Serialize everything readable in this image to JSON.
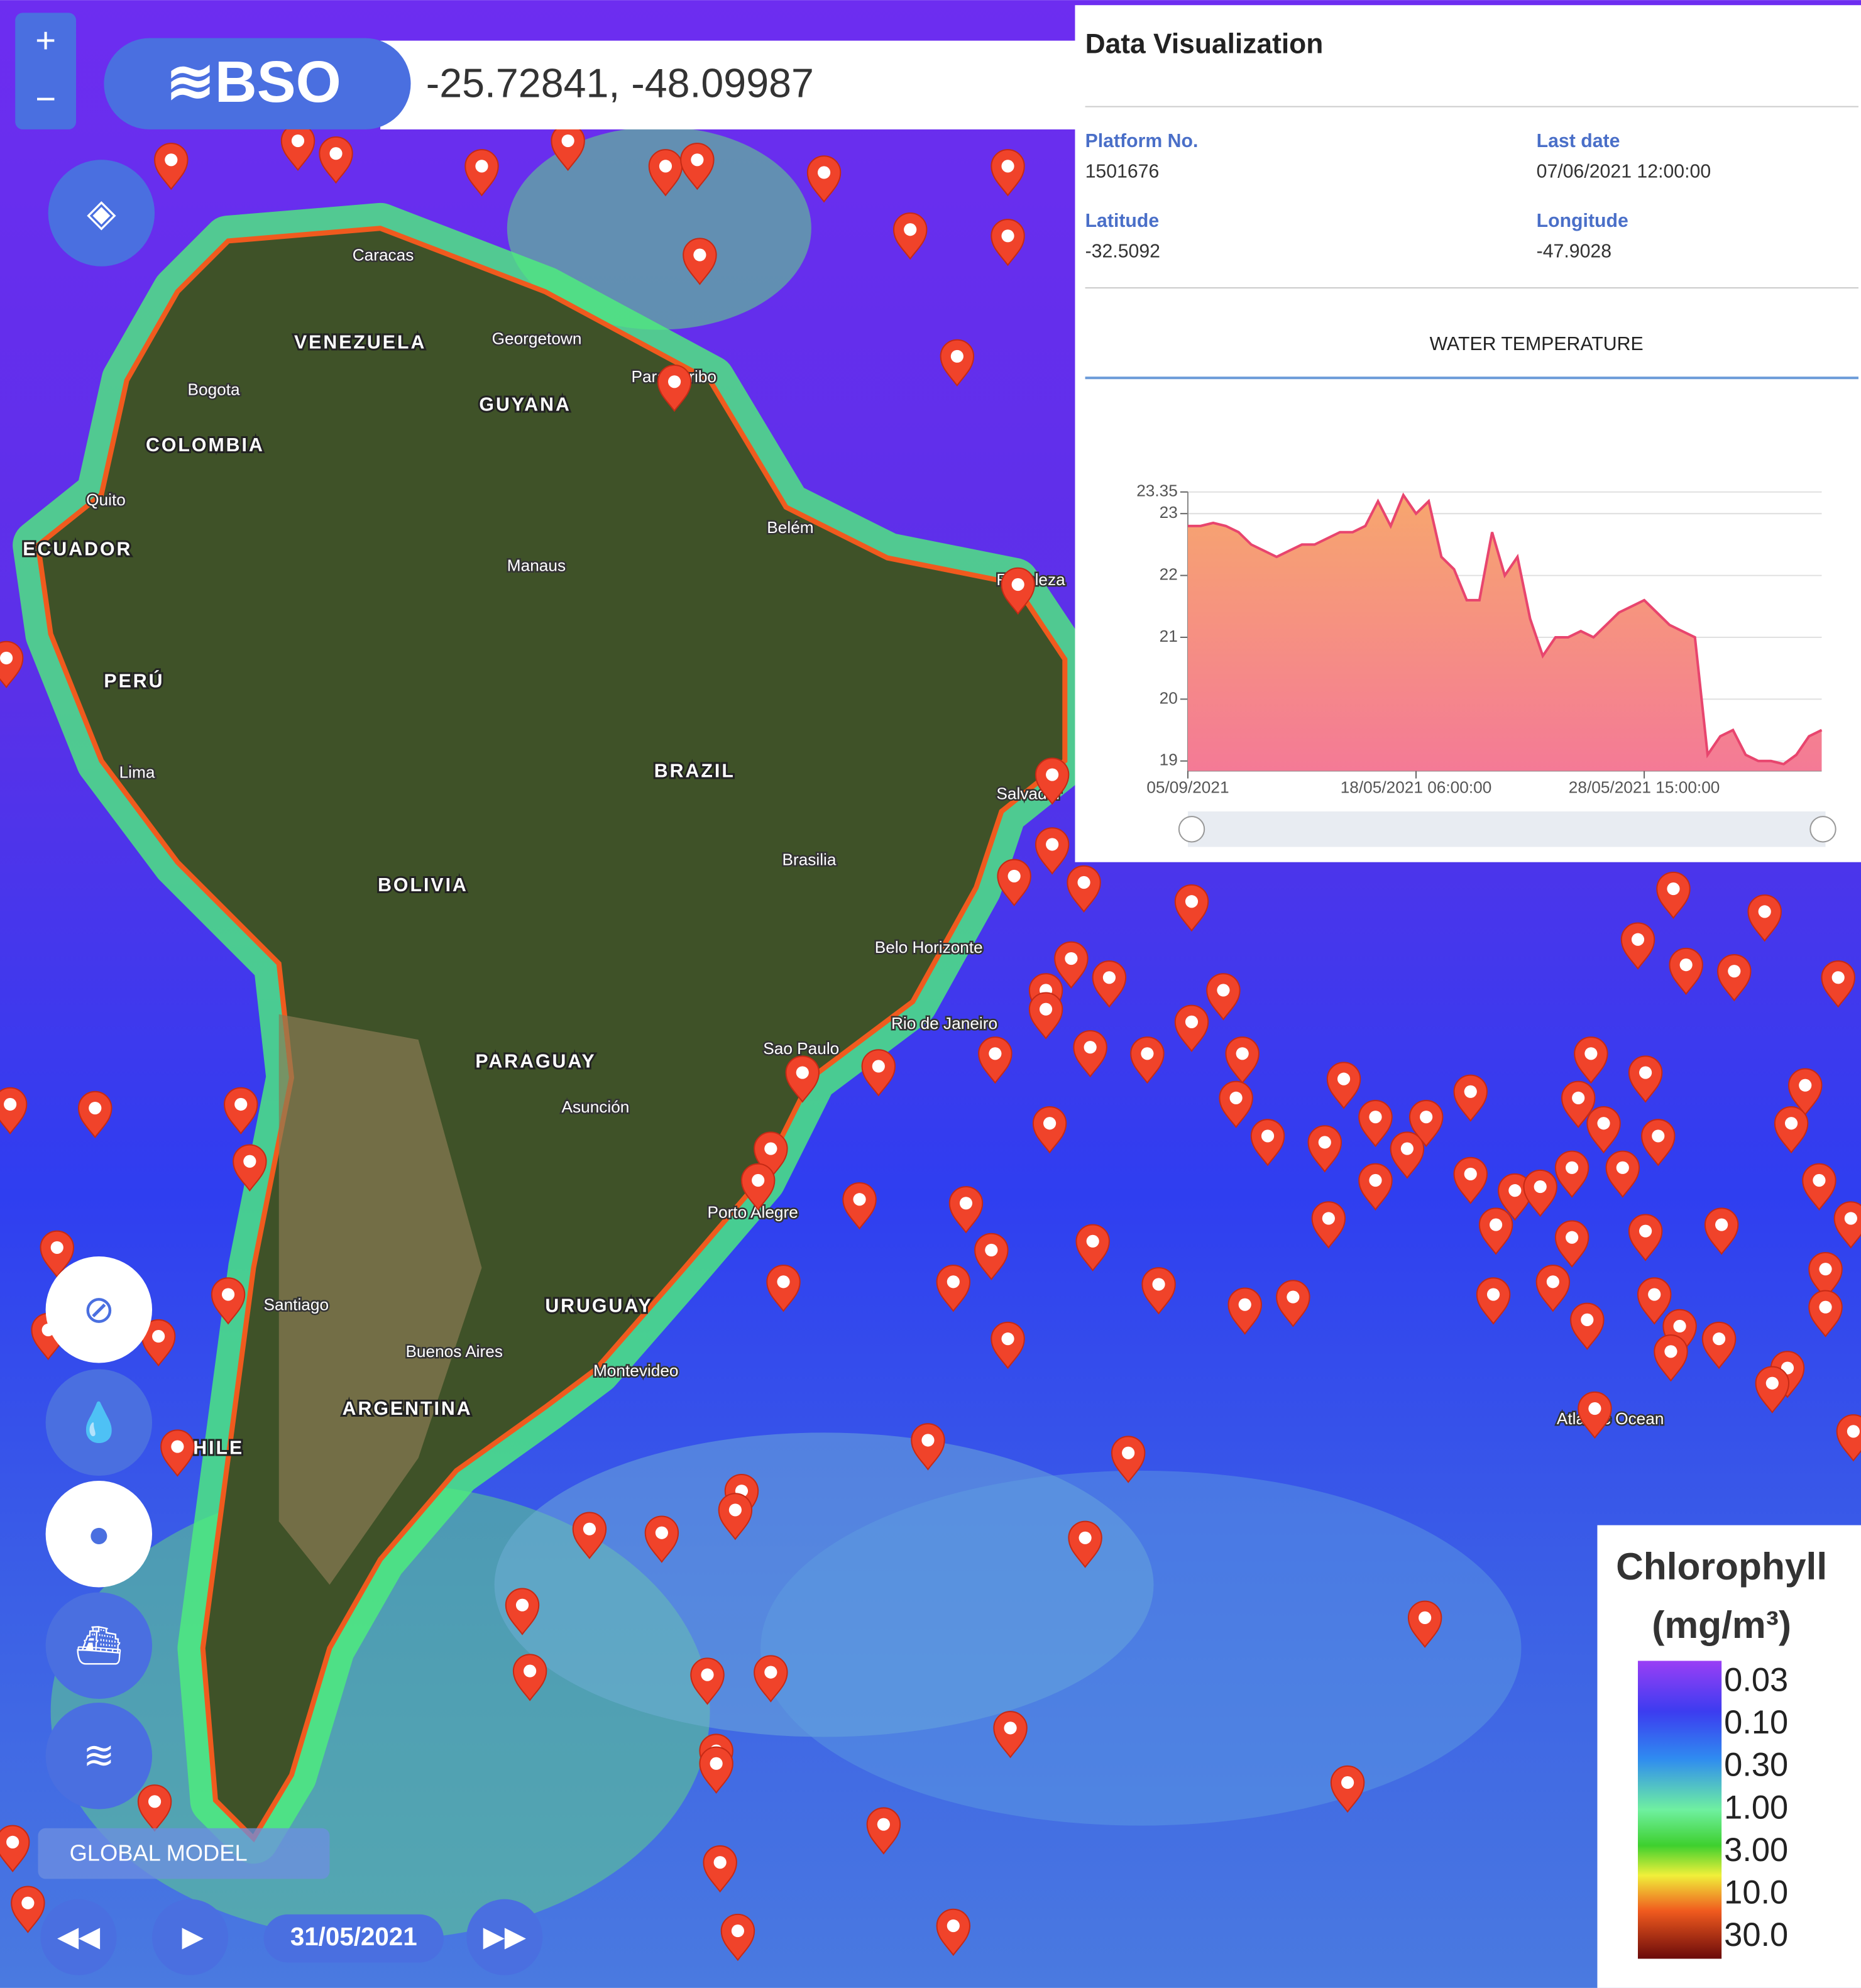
{
  "header": {
    "logo": "≋BSO",
    "coordinates": "-25.72841, -48.09987"
  },
  "map_labels": [
    "Caracas",
    "VENEZUELA",
    "Georgetown",
    "Paramaribo",
    "GUYANA",
    "Bogota",
    "COLOMBIA",
    "Quito",
    "ECUADOR",
    "Belém",
    "Manaus",
    "Fortaleza",
    "PERÚ",
    "Lima",
    "BRAZIL",
    "Salvador",
    "Brasilia",
    "BOLIVIA",
    "Belo Horizonte",
    "Rio de Janeiro",
    "Sao Paulo",
    "PARAGUAY",
    "Asunción",
    "Porto Alegre",
    "URUGUAY",
    "Santiago",
    "Buenos Aires",
    "Montevideo",
    "ARGENTINA",
    "CHILE",
    "Atlantic Ocean"
  ],
  "panel": {
    "title": "Data Visualization",
    "fields": [
      {
        "label": "Platform No.",
        "value": "1501676"
      },
      {
        "label": "Last date",
        "value": "07/06/2021 12:00:00"
      },
      {
        "label": "Latitude",
        "value": "-32.5092"
      },
      {
        "label": "Longitude",
        "value": "-47.9028"
      }
    ]
  },
  "chart_data": {
    "type": "area",
    "title": "WATER TEMPERATURE",
    "color": "#e8456e",
    "values": [
      22.8,
      22.8,
      22.85,
      22.8,
      22.7,
      22.5,
      22.4,
      22.3,
      22.4,
      22.5,
      22.5,
      22.6,
      22.7,
      22.7,
      22.8,
      23.2,
      22.8,
      23.3,
      23.0,
      23.2,
      22.3,
      22.1,
      21.6,
      21.6,
      22.7,
      22.0,
      22.3,
      21.3,
      20.7,
      21.0,
      21.0,
      21.1,
      21.0,
      21.2,
      21.4,
      21.5,
      21.6,
      21.4,
      21.2,
      21.1,
      21.0,
      19.1,
      19.4,
      19.5,
      19.1,
      19.0,
      19.0,
      18.95,
      19.1,
      19.4,
      19.5
    ],
    "xlim": [
      0,
      50
    ],
    "xticks": [
      {
        "value": 0,
        "label": "05/09/2021"
      },
      {
        "value": 18,
        "label": "18/05/2021 06:00:00"
      },
      {
        "value": 36,
        "label": "28/05/2021 15:00:00"
      }
    ],
    "ylim": [
      18.84,
      23.35
    ],
    "yticks": [
      19,
      20,
      21,
      22,
      23,
      23.35
    ],
    "grid": true
  },
  "legend": {
    "title": "Chlorophyll",
    "unit": "(mg/m³)",
    "labels": [
      "0.03",
      "0.10",
      "0.30",
      "1.00",
      "3.00",
      "10.0",
      "30.0"
    ]
  },
  "controls": {
    "layer_label": "GLOBAL MODEL",
    "date": "31/05/2021"
  }
}
